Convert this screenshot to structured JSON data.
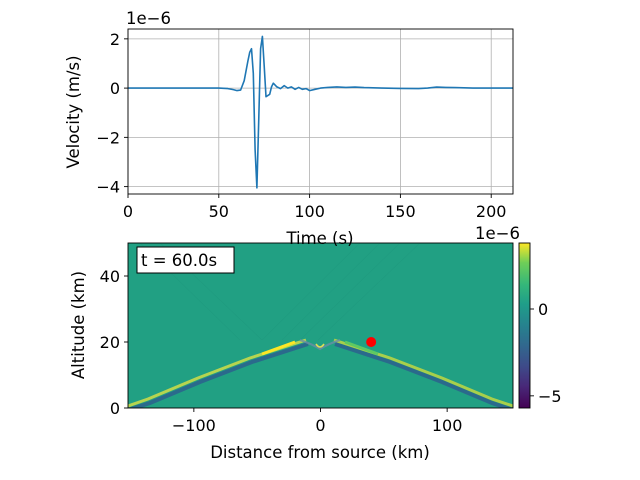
{
  "chart_data": [
    {
      "type": "line",
      "xlabel": "Time (s)",
      "ylabel": "Velocity (m/s)",
      "y_offset_label": "1e−6",
      "xlim": [
        0,
        212
      ],
      "ylim": [
        -4.3,
        2.4
      ],
      "grid": true,
      "x_ticks": [
        0,
        50,
        100,
        150,
        200
      ],
      "x_tick_labels": [
        "0",
        "50",
        "100",
        "150",
        "200"
      ],
      "y_ticks": [
        -4,
        -2,
        0,
        2
      ],
      "y_tick_labels": [
        "−4",
        "−2",
        "0",
        "2"
      ],
      "series": [
        {
          "color": "#1f77b4",
          "x": [
            0,
            50,
            55,
            58,
            60,
            62,
            64,
            66,
            67,
            68,
            69,
            70,
            71,
            72,
            73,
            74,
            75,
            76,
            78,
            79,
            80,
            82,
            84,
            86,
            88,
            90,
            92,
            94,
            96,
            98,
            100,
            103,
            106,
            110,
            115,
            120,
            125,
            130,
            140,
            150,
            160,
            165,
            170,
            175,
            180,
            190,
            200,
            212
          ],
          "y": [
            0,
            0,
            -0.02,
            -0.06,
            -0.1,
            -0.08,
            0.3,
            1.1,
            1.45,
            1.6,
            0.6,
            -2.5,
            -4.05,
            -1.2,
            1.6,
            2.1,
            0.9,
            -0.35,
            -0.25,
            0.05,
            0.2,
            0.05,
            -0.02,
            0.1,
            0.0,
            0.05,
            -0.05,
            0.03,
            -0.05,
            -0.02,
            -0.1,
            -0.05,
            0.0,
            0.03,
            0.05,
            0.03,
            0.04,
            0.02,
            0.0,
            -0.01,
            -0.02,
            0.0,
            0.04,
            0.03,
            0.02,
            0.0,
            0.0,
            0.0
          ]
        }
      ]
    },
    {
      "type": "heatmap",
      "xlabel": "Distance from source (km)",
      "ylabel": "Altitude (km)",
      "xlim": [
        -152,
        152
      ],
      "ylim": [
        0,
        50
      ],
      "x_ticks": [
        -100,
        0,
        100
      ],
      "x_tick_labels": [
        "−100",
        "0",
        "100"
      ],
      "y_ticks": [
        0,
        20,
        40
      ],
      "y_tick_labels": [
        "0",
        "20",
        "40"
      ],
      "annotation": "t = 60.0s",
      "marker": {
        "x": 40,
        "y": 20,
        "color": "#ff0000"
      },
      "colorbar": {
        "offset_label": "1e−6",
        "range": [
          -5.7,
          3.8
        ],
        "ticks": [
          0,
          -5
        ],
        "tick_labels": [
          "0",
          "−5"
        ],
        "colormap": "viridis"
      },
      "background_color": "#21a083",
      "wavefront": {
        "apex": [
          0,
          20
        ],
        "left_end": [
          -152,
          0
        ],
        "right_end": [
          152,
          0
        ]
      }
    }
  ]
}
